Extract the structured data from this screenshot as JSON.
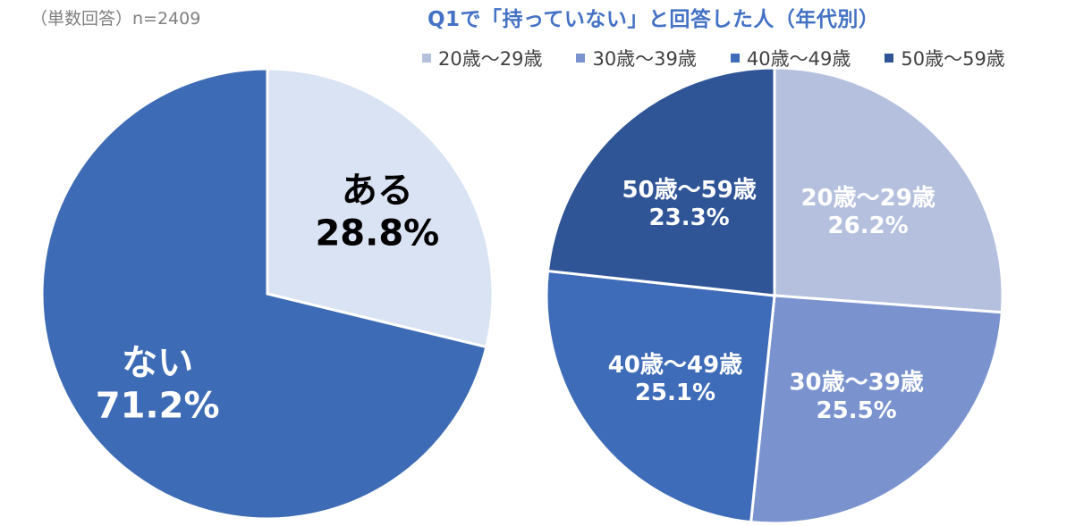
{
  "note": "（単数回答）n=2409",
  "chart_data": [
    {
      "type": "pie",
      "title": "",
      "slices": [
        {
          "label": "ある",
          "value": 28.8,
          "value_label": "28.8%",
          "color": "#dae3f3",
          "text_color": "#000000"
        },
        {
          "label": "ない",
          "value": 71.2,
          "value_label": "71.2%",
          "color": "#3e6bb5",
          "text_color": "#ffffff"
        }
      ],
      "start_angle_deg": 0,
      "direction": "clockwise"
    },
    {
      "type": "pie",
      "title": "Q1で「持っていない」と回答した人（年代別）",
      "legend_position": "top",
      "slices": [
        {
          "label": "20歳～29歳",
          "value": 26.2,
          "value_label": "26.2%",
          "color": "#b4c0de",
          "text_color": "#ffffff"
        },
        {
          "label": "30歳～39歳",
          "value": 25.5,
          "value_label": "25.5%",
          "color": "#7a93cf",
          "text_color": "#ffffff"
        },
        {
          "label": "40歳～49歳",
          "value": 25.1,
          "value_label": "25.1%",
          "color": "#3f6cb8",
          "text_color": "#ffffff"
        },
        {
          "label": "50歳～59歳",
          "value": 23.3,
          "value_label": "23.3%",
          "color": "#2f5597",
          "text_color": "#ffffff"
        }
      ],
      "start_angle_deg": 0,
      "direction": "clockwise"
    }
  ]
}
